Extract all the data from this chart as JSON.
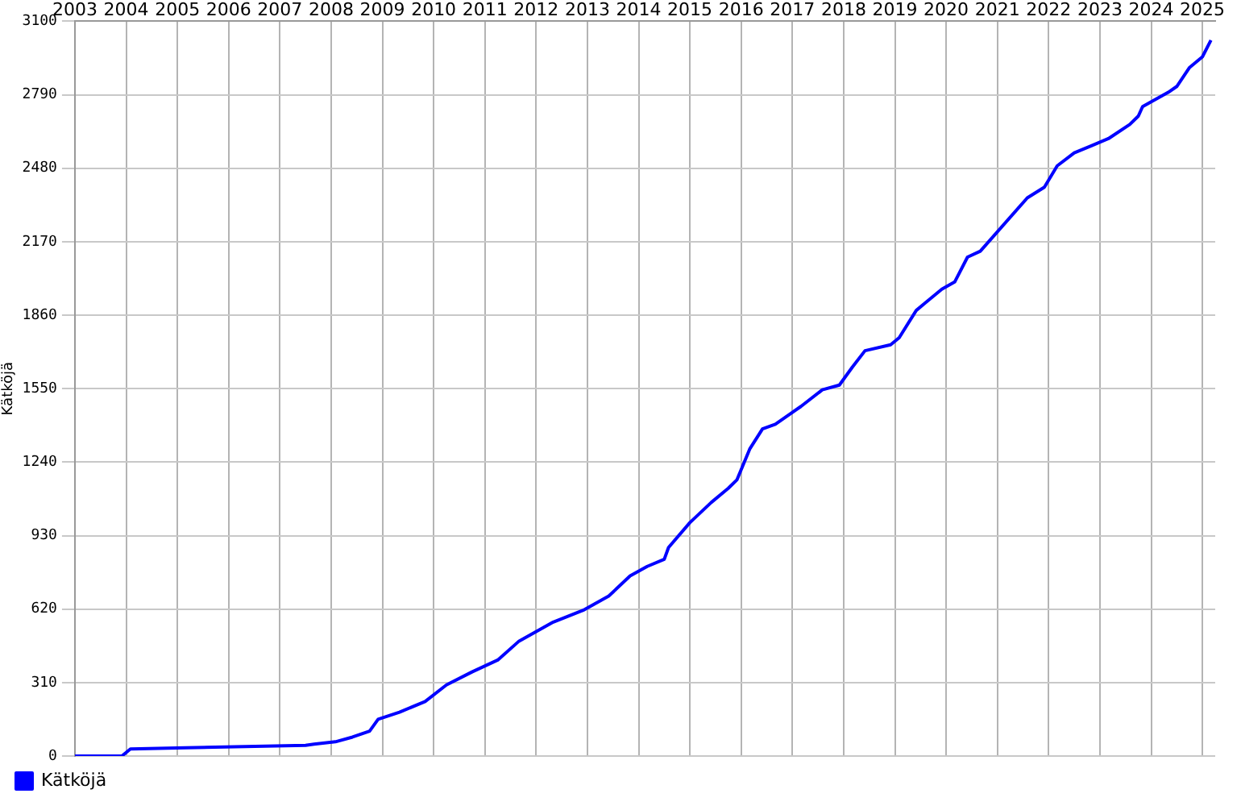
{
  "chart_data": {
    "type": "line",
    "ylabel": "Kätköjä",
    "x": [
      "2003-01",
      "2003-12",
      "2004-02",
      "2005-03",
      "2007-07",
      "2007-09",
      "2008-02",
      "2008-06",
      "2008-10",
      "2008-12",
      "2009-05",
      "2009-11",
      "2010-04",
      "2010-10",
      "2011-04",
      "2011-09",
      "2012-05",
      "2012-12",
      "2013-06",
      "2013-11",
      "2014-03",
      "2014-07",
      "2014-08",
      "2015-01",
      "2015-06",
      "2015-10",
      "2015-12",
      "2016-03",
      "2016-06",
      "2016-09",
      "2017-03",
      "2017-08",
      "2017-12",
      "2018-03",
      "2018-06",
      "2018-12",
      "2019-02",
      "2019-06",
      "2019-08",
      "2019-12",
      "2020-03",
      "2020-06",
      "2020-09",
      "2021-08",
      "2021-12",
      "2022-03",
      "2022-07",
      "2022-11",
      "2023-03",
      "2023-08",
      "2023-10",
      "2023-11",
      "2024-05",
      "2024-07",
      "2024-10",
      "2025-01",
      "2025-03"
    ],
    "series": [
      {
        "name": "Kätköjä",
        "color": "#0000ff",
        "values": [
          0,
          0,
          30,
          35,
          45,
          50,
          60,
          80,
          105,
          155,
          185,
          230,
          300,
          355,
          405,
          485,
          565,
          615,
          675,
          760,
          800,
          830,
          880,
          985,
          1070,
          1130,
          1165,
          1295,
          1380,
          1400,
          1475,
          1545,
          1565,
          1640,
          1710,
          1735,
          1765,
          1880,
          1910,
          1970,
          2000,
          2105,
          2130,
          2355,
          2400,
          2490,
          2545,
          2575,
          2605,
          2665,
          2700,
          2740,
          2800,
          2825,
          2905,
          2950,
          3020
        ]
      }
    ],
    "xlim": [
      "2003-01",
      "2025-04"
    ],
    "xticks": [
      "2003",
      "2004",
      "2005",
      "2006",
      "2007",
      "2008",
      "2009",
      "2010",
      "2011",
      "2012",
      "2013",
      "2014",
      "2015",
      "2016",
      "2017",
      "2018",
      "2019",
      "2020",
      "2021",
      "2022",
      "2023",
      "2024",
      "2025"
    ],
    "ylim": [
      0,
      3100
    ],
    "yticks": [
      0,
      310,
      620,
      930,
      1240,
      1550,
      1860,
      2170,
      2480,
      2790,
      3100
    ],
    "grid": true,
    "legend": "bottom left",
    "marker": "none",
    "line_style": "solid"
  }
}
